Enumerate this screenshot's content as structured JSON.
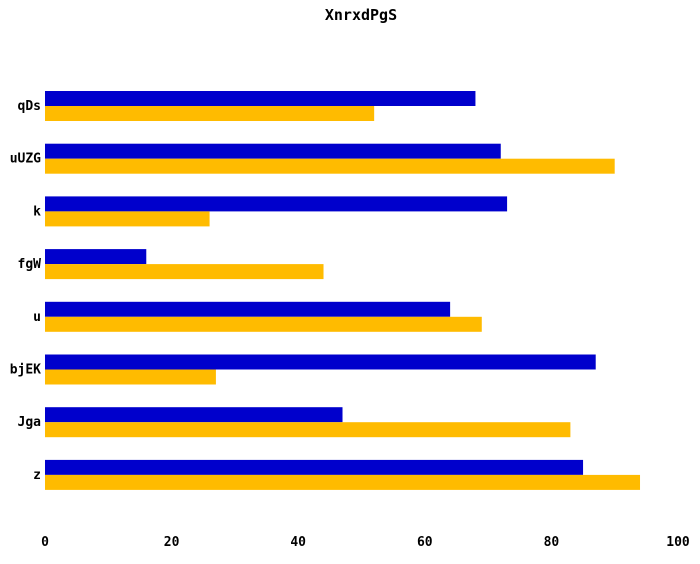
{
  "chart_data": {
    "type": "bar",
    "orientation": "horizontal",
    "title": "XnrxdPgS",
    "xlabel": "",
    "ylabel": "",
    "categories": [
      "qDs",
      "uUZG",
      "k",
      "fgW",
      "u",
      "bjEK",
      "Jga",
      "z"
    ],
    "series": [
      {
        "color": "#0000cc",
        "values": [
          68,
          72,
          73,
          16,
          64,
          87,
          47,
          85
        ]
      },
      {
        "color": "#ffbb00",
        "values": [
          52,
          90,
          26,
          44,
          69,
          27,
          83,
          94
        ]
      }
    ],
    "xlim": [
      0,
      100
    ],
    "xticks": [
      "0",
      "20",
      "40",
      "60",
      "80",
      "100"
    ],
    "grid": false,
    "legend": "none"
  }
}
